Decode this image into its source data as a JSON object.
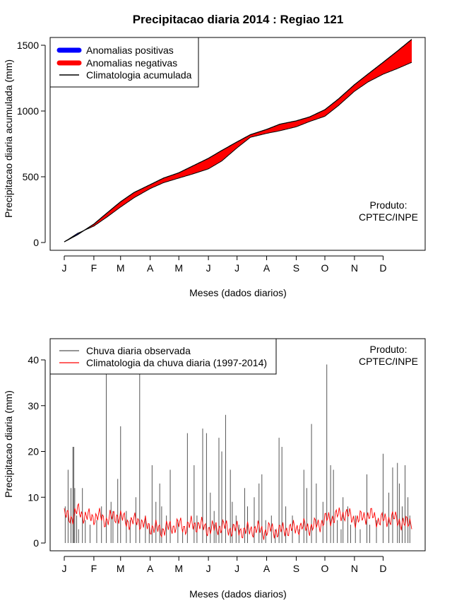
{
  "chart_data": [
    {
      "type": "area",
      "title": "Precipitacao diaria 2014 : Regiao 121",
      "xlabel": "Meses (dados diarios)",
      "ylabel": "Precipitacao diaria acumulada (mm)",
      "ylim": [
        0,
        1550
      ],
      "yticks": [
        0,
        500,
        1000,
        1500
      ],
      "month_ticks": [
        "J",
        "F",
        "M",
        "A",
        "M",
        "J",
        "J",
        "A",
        "S",
        "O",
        "N",
        "D"
      ],
      "legend": [
        "Anomalias positivas",
        "Anomalias negativas",
        "Climatologia acumulada"
      ],
      "legend_colors": [
        "#0000ff",
        "#ff0000",
        "#000000"
      ],
      "annotation": [
        "Produto:",
        "CPTEC/INPE"
      ],
      "x_day_of_year": [
        1,
        15,
        32,
        45,
        60,
        74,
        91,
        105,
        121,
        135,
        152,
        166,
        182,
        196,
        213,
        227,
        244,
        258,
        274,
        288,
        305,
        319,
        335,
        349,
        365
      ],
      "observed_accumulated": [
        5,
        70,
        125,
        190,
        270,
        340,
        410,
        455,
        490,
        520,
        560,
        620,
        720,
        800,
        830,
        850,
        880,
        920,
        960,
        1040,
        1150,
        1220,
        1280,
        1320,
        1370
      ],
      "climatology_accumulated": [
        5,
        60,
        140,
        220,
        310,
        380,
        440,
        490,
        530,
        580,
        640,
        700,
        765,
        820,
        860,
        900,
        925,
        955,
        1010,
        1090,
        1200,
        1280,
        1370,
        1450,
        1545
      ]
    },
    {
      "type": "line",
      "xlabel": "Meses (dados diarios)",
      "ylabel": "Precipitacao diaria (mm)",
      "ylim": [
        0,
        45
      ],
      "yticks": [
        0,
        10,
        20,
        30,
        40
      ],
      "month_ticks": [
        "J",
        "F",
        "M",
        "A",
        "M",
        "J",
        "J",
        "A",
        "S",
        "O",
        "N",
        "D"
      ],
      "legend": [
        "Chuva diaria observada",
        "Climatologia da chuva diaria (1997-2014)"
      ],
      "legend_colors": [
        "#555555",
        "#ff0000"
      ],
      "annotation": [
        "Produto:",
        "CPTEC/INPE"
      ],
      "series": [
        {
          "name": "Chuva diaria observada",
          "x_day_of_year": [
            2,
            5,
            8,
            10,
            11,
            12,
            14,
            16,
            20,
            23,
            28,
            35,
            40,
            45,
            50,
            52,
            57,
            60,
            66,
            70,
            76,
            80,
            86,
            90,
            93,
            97,
            101,
            103,
            108,
            112,
            120,
            125,
            130,
            137,
            140,
            146,
            150,
            154,
            158,
            160,
            163,
            166,
            170,
            175,
            177,
            181,
            184,
            190,
            193,
            200,
            205,
            208,
            212,
            218,
            222,
            226,
            229,
            233,
            240,
            247,
            252,
            255,
            260,
            265,
            272,
            276,
            280,
            283,
            287,
            291,
            293,
            298,
            301,
            306,
            311,
            318,
            321,
            328,
            335,
            341,
            345,
            350,
            352,
            355,
            358,
            361,
            363
          ],
          "values": [
            8,
            16,
            12,
            21,
            21,
            12,
            6,
            3,
            12,
            5,
            4,
            5,
            8,
            45,
            9,
            7,
            14,
            25.5,
            7,
            5,
            10,
            45,
            6,
            4,
            17,
            9,
            13,
            8,
            6,
            16,
            5,
            3,
            24,
            17,
            6,
            25,
            24,
            11,
            7,
            4,
            23,
            20,
            28,
            16,
            9,
            6,
            4,
            12,
            8,
            10,
            13,
            15,
            5,
            6,
            3,
            23,
            21,
            8,
            6,
            3,
            16,
            12,
            26,
            13,
            9,
            39,
            17,
            16,
            5,
            3,
            10,
            8,
            4,
            6,
            3,
            15,
            4,
            5,
            19.5,
            11,
            16.5,
            17.5,
            13,
            8,
            17,
            10,
            6
          ],
          "color": "#555555"
        },
        {
          "name": "Climatologia da chuva diaria (1997-2014)",
          "x_day_of_year": [
            1,
            8,
            15,
            22,
            29,
            36,
            43,
            50,
            57,
            64,
            71,
            78,
            85,
            92,
            99,
            106,
            113,
            120,
            127,
            134,
            141,
            148,
            155,
            162,
            169,
            176,
            183,
            190,
            197,
            204,
            211,
            218,
            225,
            232,
            239,
            246,
            253,
            260,
            267,
            274,
            281,
            288,
            295,
            302,
            309,
            316,
            323,
            330,
            337,
            344,
            351,
            358,
            365
          ],
          "values": [
            6,
            5.5,
            7,
            6,
            5.5,
            6,
            5,
            5.5,
            6,
            5,
            4.5,
            5,
            4,
            3.5,
            3,
            3,
            3.5,
            4,
            3.5,
            4,
            4,
            3.5,
            3,
            3.5,
            3.5,
            3,
            3,
            2.5,
            3,
            3,
            2.5,
            3,
            2.5,
            3,
            3,
            3.5,
            3.5,
            3.5,
            4,
            5,
            5.5,
            6,
            6.5,
            5.5,
            5,
            6,
            6,
            5,
            5,
            5.5,
            5,
            4,
            5
          ],
          "color": "#ff0000"
        }
      ]
    }
  ]
}
